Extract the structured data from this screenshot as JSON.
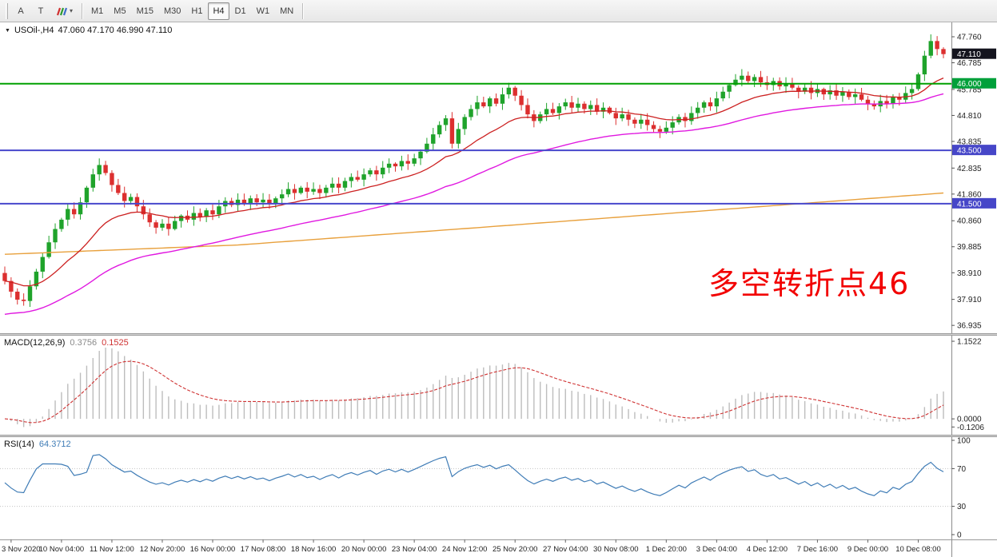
{
  "toolbar": {
    "left_buttons": [
      {
        "id": "font-tool",
        "label": "A"
      },
      {
        "id": "text-tool",
        "label": "T"
      }
    ],
    "colors_caret": "▾",
    "timeframes": [
      "M1",
      "M5",
      "M15",
      "M30",
      "H1",
      "H4",
      "D1",
      "W1",
      "MN"
    ],
    "active_timeframe": "H4"
  },
  "colors": {
    "up": "#1fa32b",
    "down": "#dc2f2f",
    "ma_fast": "#cc2020",
    "ma_mid": "#e018e0",
    "ma_slow": "#e8a03c",
    "macd_hist": "#bdbdbd",
    "macd_signal": "#cf3232",
    "rsi_line": "#3f7cb6",
    "scale_text": "#222222",
    "axis_line": "#8c8c8c"
  },
  "chart_data": [
    {
      "type": "candlestick",
      "collapse_marker": "▼",
      "title": "USOil-,H4",
      "ohlc_display": "47.060 47.170 46.990 47.110",
      "annotation": {
        "text": "多空转折点46",
        "color": "#f20000"
      },
      "ylim": [
        36.64,
        48.3
      ],
      "closes": [
        38.6,
        38.2,
        37.9,
        37.85,
        38.4,
        38.95,
        39.5,
        40.05,
        40.55,
        40.9,
        41.3,
        41.1,
        41.55,
        42.1,
        42.6,
        42.95,
        42.65,
        42.2,
        41.9,
        41.6,
        41.75,
        41.4,
        41.1,
        40.8,
        40.6,
        40.75,
        40.55,
        40.85,
        41.05,
        40.9,
        41.15,
        41.0,
        41.25,
        41.1,
        41.4,
        41.6,
        41.45,
        41.65,
        41.5,
        41.7,
        41.55,
        41.65,
        41.5,
        41.7,
        41.85,
        42.05,
        41.9,
        42.1,
        41.95,
        42.05,
        41.9,
        42.1,
        42.25,
        42.1,
        42.35,
        42.5,
        42.4,
        42.6,
        42.75,
        42.6,
        42.85,
        43.0,
        42.9,
        43.1,
        43.0,
        43.2,
        43.45,
        43.75,
        44.1,
        44.45,
        44.7,
        43.75,
        44.3,
        44.75,
        45.05,
        45.3,
        45.15,
        45.45,
        45.25,
        45.6,
        45.85,
        45.55,
        45.2,
        44.85,
        44.6,
        44.85,
        45.05,
        44.9,
        45.15,
        45.3,
        45.1,
        45.25,
        45.05,
        45.2,
        44.95,
        45.1,
        44.9,
        44.7,
        44.85,
        44.65,
        44.5,
        44.65,
        44.45,
        44.3,
        44.2,
        44.35,
        44.55,
        44.75,
        44.6,
        44.9,
        45.1,
        45.3,
        45.15,
        45.45,
        45.7,
        45.95,
        46.15,
        46.3,
        46.1,
        46.25,
        46.05,
        45.95,
        46.1,
        45.9,
        46.0,
        45.85,
        45.7,
        45.85,
        45.65,
        45.8,
        45.6,
        45.75,
        45.55,
        45.7,
        45.5,
        45.6,
        45.4,
        45.25,
        45.15,
        45.35,
        45.25,
        45.5,
        45.4,
        45.65,
        45.8,
        46.35,
        47.05,
        47.6,
        47.3,
        47.11
      ],
      "y_ticks": [
        47.76,
        46.785,
        45.785,
        44.81,
        43.835,
        42.835,
        41.86,
        40.86,
        39.885,
        38.91,
        37.91,
        36.935
      ],
      "price_markers": [
        {
          "price": 47.11,
          "label": "47.110",
          "bg": "#14141e"
        },
        {
          "price": 46.0,
          "label": "46.000",
          "bg": "#00a03a"
        },
        {
          "price": 43.5,
          "label": "43.500",
          "bg": "#4646c8"
        },
        {
          "price": 41.5,
          "label": "41.500",
          "bg": "#4646c8"
        }
      ],
      "hlines": [
        {
          "price": 46.0,
          "color": "#00a000",
          "w": 2
        },
        {
          "price": 43.5,
          "color": "#4747cc",
          "w": 2
        },
        {
          "price": 41.5,
          "color": "#4747cc",
          "w": 2
        }
      ],
      "ma": {
        "fast": {
          "period": 18,
          "seed": 38.6
        },
        "mid": {
          "period": 50,
          "seed": 37.3
        },
        "slow_points": [
          [
            0,
            39.6
          ],
          [
            37,
            39.95
          ],
          [
            75,
            40.6
          ],
          [
            112,
            41.25
          ],
          [
            149,
            41.9
          ]
        ]
      },
      "x_labels": [
        {
          "i": 1,
          "label": "3 Nov 2020"
        },
        {
          "i": 9,
          "label": "10 Nov 04:00"
        },
        {
          "i": 17,
          "label": "11 Nov 12:00"
        },
        {
          "i": 25,
          "label": "12 Nov 20:00"
        },
        {
          "i": 33,
          "label": "16 Nov 00:00"
        },
        {
          "i": 41,
          "label": "17 Nov 08:00"
        },
        {
          "i": 49,
          "label": "18 Nov 16:00"
        },
        {
          "i": 57,
          "label": "20 Nov 00:00"
        },
        {
          "i": 65,
          "label": "23 Nov 04:00"
        },
        {
          "i": 73,
          "label": "24 Nov 12:00"
        },
        {
          "i": 81,
          "label": "25 Nov 20:00"
        },
        {
          "i": 89,
          "label": "27 Nov 04:00"
        },
        {
          "i": 97,
          "label": "30 Nov 08:00"
        },
        {
          "i": 105,
          "label": "1 Dec 20:00"
        },
        {
          "i": 113,
          "label": "3 Dec 04:00"
        },
        {
          "i": 121,
          "label": "4 Dec 12:00"
        },
        {
          "i": 129,
          "label": "7 Dec 16:00"
        },
        {
          "i": 137,
          "label": "9 Dec 00:00"
        },
        {
          "i": 145,
          "label": "10 Dec 08:00"
        }
      ]
    },
    {
      "type": "macd",
      "label": "MACD(12,26,9)",
      "value_main": "0.3756",
      "value_signal": "0.1525",
      "params": {
        "fast": 12,
        "slow": 26,
        "signal": 9
      },
      "ylim": [
        -0.2,
        1.2
      ],
      "y_ticks": [
        {
          "v": 1.1522,
          "label": "1.1522"
        },
        {
          "v": 0.0,
          "label": "0.0000"
        },
        {
          "v": -0.1206,
          "label": "-0.1206"
        }
      ]
    },
    {
      "type": "rsi",
      "label": "RSI(14)",
      "value": "64.3712",
      "period": 14,
      "ylim": [
        0,
        100
      ],
      "levels": [
        70,
        30
      ],
      "y_ticks": [
        {
          "v": 100,
          "label": "100"
        },
        {
          "v": 70,
          "label": "70"
        },
        {
          "v": 30,
          "label": "30"
        },
        {
          "v": 0,
          "label": "0"
        }
      ]
    }
  ]
}
